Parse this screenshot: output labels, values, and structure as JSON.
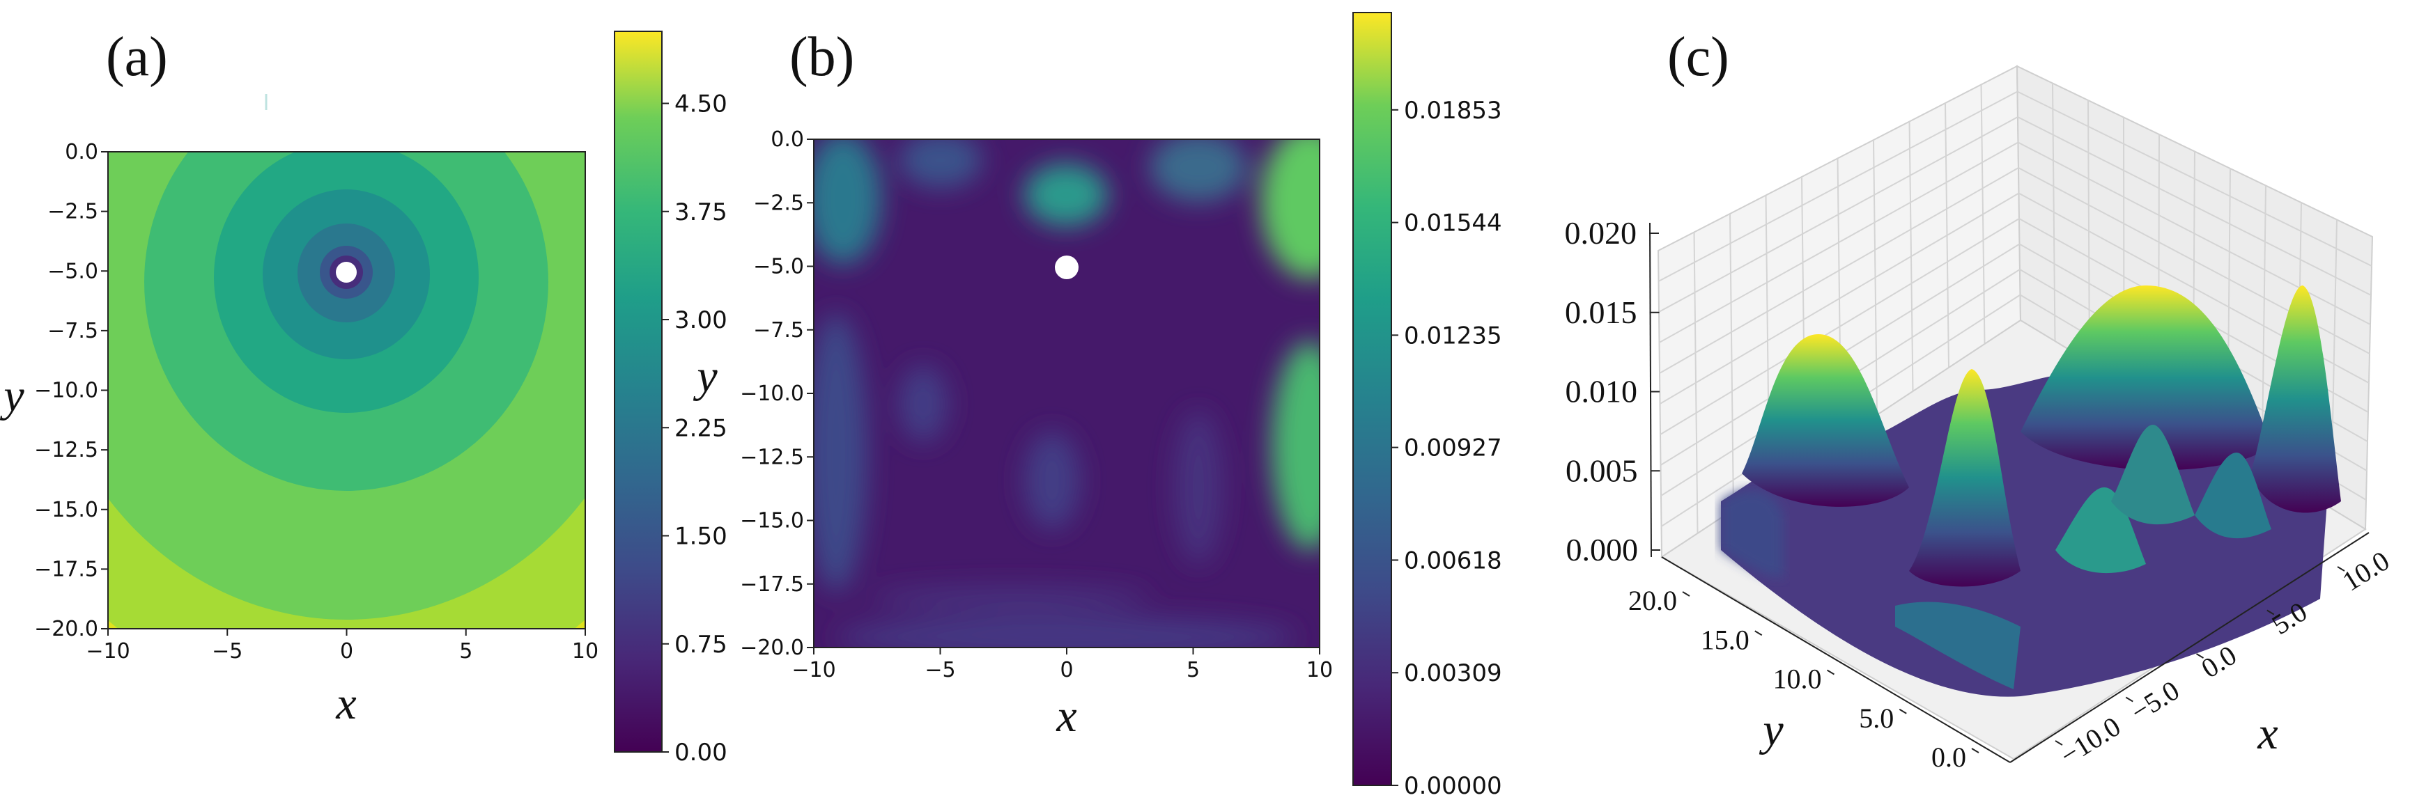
{
  "panel_labels": [
    "(a)",
    "(b)",
    "(c)"
  ],
  "chart_data": [
    {
      "type": "heatmap",
      "panel": "(a)",
      "xlabel": "x",
      "ylabel": "y",
      "xlim": [
        -10,
        10
      ],
      "ylim": [
        -20,
        0
      ],
      "xticks": [
        "−10",
        "−5",
        "0",
        "5",
        "10"
      ],
      "yticks": [
        "0.0",
        "−2.5",
        "−5.0",
        "−7.5",
        "−10.0",
        "−12.5",
        "−15.0",
        "−17.5",
        "−20.0"
      ],
      "hole_center": [
        0,
        -5
      ],
      "colormap": "viridis",
      "colorbar": {
        "min": 0.0,
        "max": 5.0,
        "ticks": [
          "0.00",
          "0.75",
          "1.50",
          "2.25",
          "3.00",
          "3.75",
          "4.50"
        ],
        "tick_values": [
          0.0,
          0.75,
          1.5,
          2.25,
          3.0,
          3.75,
          4.5
        ],
        "label": "y"
      }
    },
    {
      "type": "heatmap",
      "panel": "(b)",
      "xlabel": "x",
      "ylabel": "",
      "xlim": [
        -10,
        10
      ],
      "ylim": [
        -20,
        0
      ],
      "xticks": [
        "−10",
        "−5",
        "0",
        "5",
        "10"
      ],
      "yticks": [
        "0.0",
        "−2.5",
        "−5.0",
        "−7.5",
        "−10.0",
        "−12.5",
        "−15.0",
        "−17.5",
        "−20.0"
      ],
      "hole_center": [
        0,
        -5
      ],
      "colormap": "viridis",
      "colorbar": {
        "min": 0.0,
        "max": 0.0212,
        "ticks": [
          "0.00000",
          "0.00309",
          "0.00618",
          "0.00927",
          "0.01235",
          "0.01544",
          "0.01853"
        ],
        "tick_values": [
          0.0,
          0.00309,
          0.00618,
          0.00927,
          0.01235,
          0.01544,
          0.01853
        ]
      }
    },
    {
      "type": "surface",
      "panel": "(c)",
      "xlabel": "x",
      "ylabel": "y",
      "zticks": [
        "0.000",
        "0.005",
        "0.010",
        "0.015",
        "0.020"
      ],
      "xticks": [
        "−10.0",
        "−5.0",
        "0.0",
        "5.0",
        "10.0"
      ],
      "yticks": [
        "0.0",
        "5.0",
        "10.0",
        "15.0",
        "20.0"
      ],
      "zlim": [
        0,
        0.02
      ],
      "colormap": "viridis"
    }
  ]
}
